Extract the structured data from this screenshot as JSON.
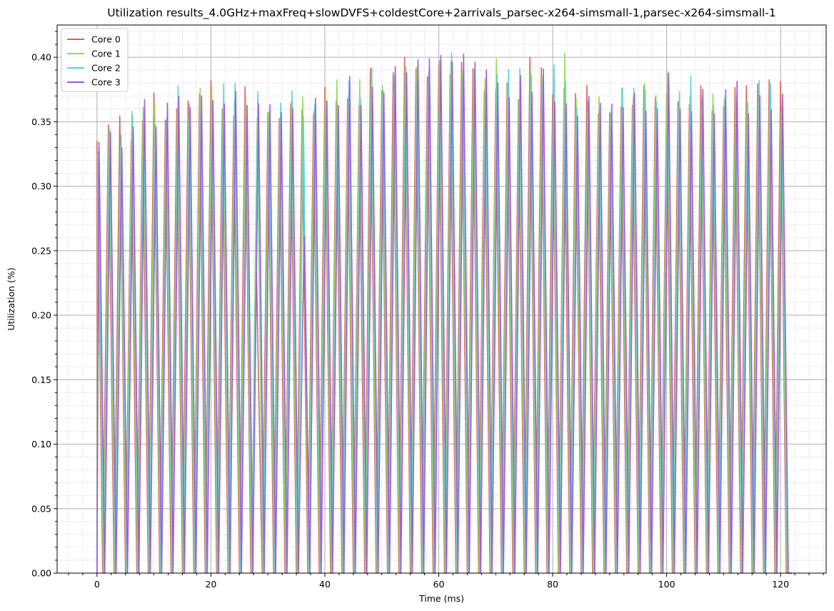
{
  "chart_data": {
    "type": "line",
    "title": "Utilization results_4.0GHz+maxFreq+slowDVFS+coldestCore+2arrivals_parsec-x264-simsmall-1,parsec-x264-simsmall-1",
    "xlabel": "Time (ms)",
    "ylabel": "Utilization (%)",
    "xlim": [
      -7,
      128
    ],
    "ylim": [
      0,
      0.425
    ],
    "xticks": [
      0,
      20,
      40,
      60,
      80,
      100,
      120
    ],
    "yticks": [
      0.0,
      0.05,
      0.1,
      0.15,
      0.2,
      0.25,
      0.3,
      0.35,
      0.4
    ],
    "grid": "major solid, minor dotted",
    "legend_position": "upper-left",
    "series": [
      {
        "name": "Core 0",
        "color": "#db5f57",
        "peaks": [
          [
            0,
            0.335
          ],
          [
            20,
            0.382
          ],
          [
            28,
            0.234
          ],
          [
            41,
            0.38
          ],
          [
            45,
            0.36
          ],
          [
            52,
            0.388
          ],
          [
            57,
            0.402
          ],
          [
            76,
            0.4
          ],
          [
            114,
            0.378
          ],
          [
            122,
            0.116
          ]
        ]
      },
      {
        "name": "Core 1",
        "color": "#91db57",
        "peaks": [
          [
            0,
            0.325
          ],
          [
            2,
            0.345
          ],
          [
            10,
            0.365
          ],
          [
            20,
            0.378
          ],
          [
            34,
            0.366
          ],
          [
            48,
            0.38
          ],
          [
            57,
            0.395
          ],
          [
            82,
            0.403
          ],
          [
            100,
            0.389
          ],
          [
            119,
            0.379
          ]
        ]
      },
      {
        "name": "Core 2",
        "color": "#57d3db",
        "peaks": [
          [
            15,
            0.301
          ],
          [
            19,
            0.376
          ],
          [
            21,
            0.316
          ],
          [
            25,
            0.37
          ],
          [
            27,
            0.357
          ],
          [
            43,
            0.381
          ],
          [
            45,
            0.32
          ],
          [
            57,
            0.407
          ],
          [
            80,
            0.394
          ],
          [
            99,
            0.378
          ],
          [
            115,
            0.383
          ],
          [
            121,
            0.285
          ]
        ]
      },
      {
        "name": "Core 3",
        "color": "#a157db",
        "peaks": [
          [
            1,
            0.35
          ],
          [
            9,
            0.365
          ],
          [
            15,
            0.283
          ],
          [
            21,
            0.285
          ],
          [
            36,
            0.261
          ],
          [
            43,
            0.379
          ],
          [
            47,
            0.328
          ],
          [
            56,
            0.398
          ],
          [
            75,
            0.404
          ],
          [
            98,
            0.36
          ],
          [
            117,
            0.375
          ],
          [
            121,
            0.285
          ]
        ]
      }
    ]
  }
}
